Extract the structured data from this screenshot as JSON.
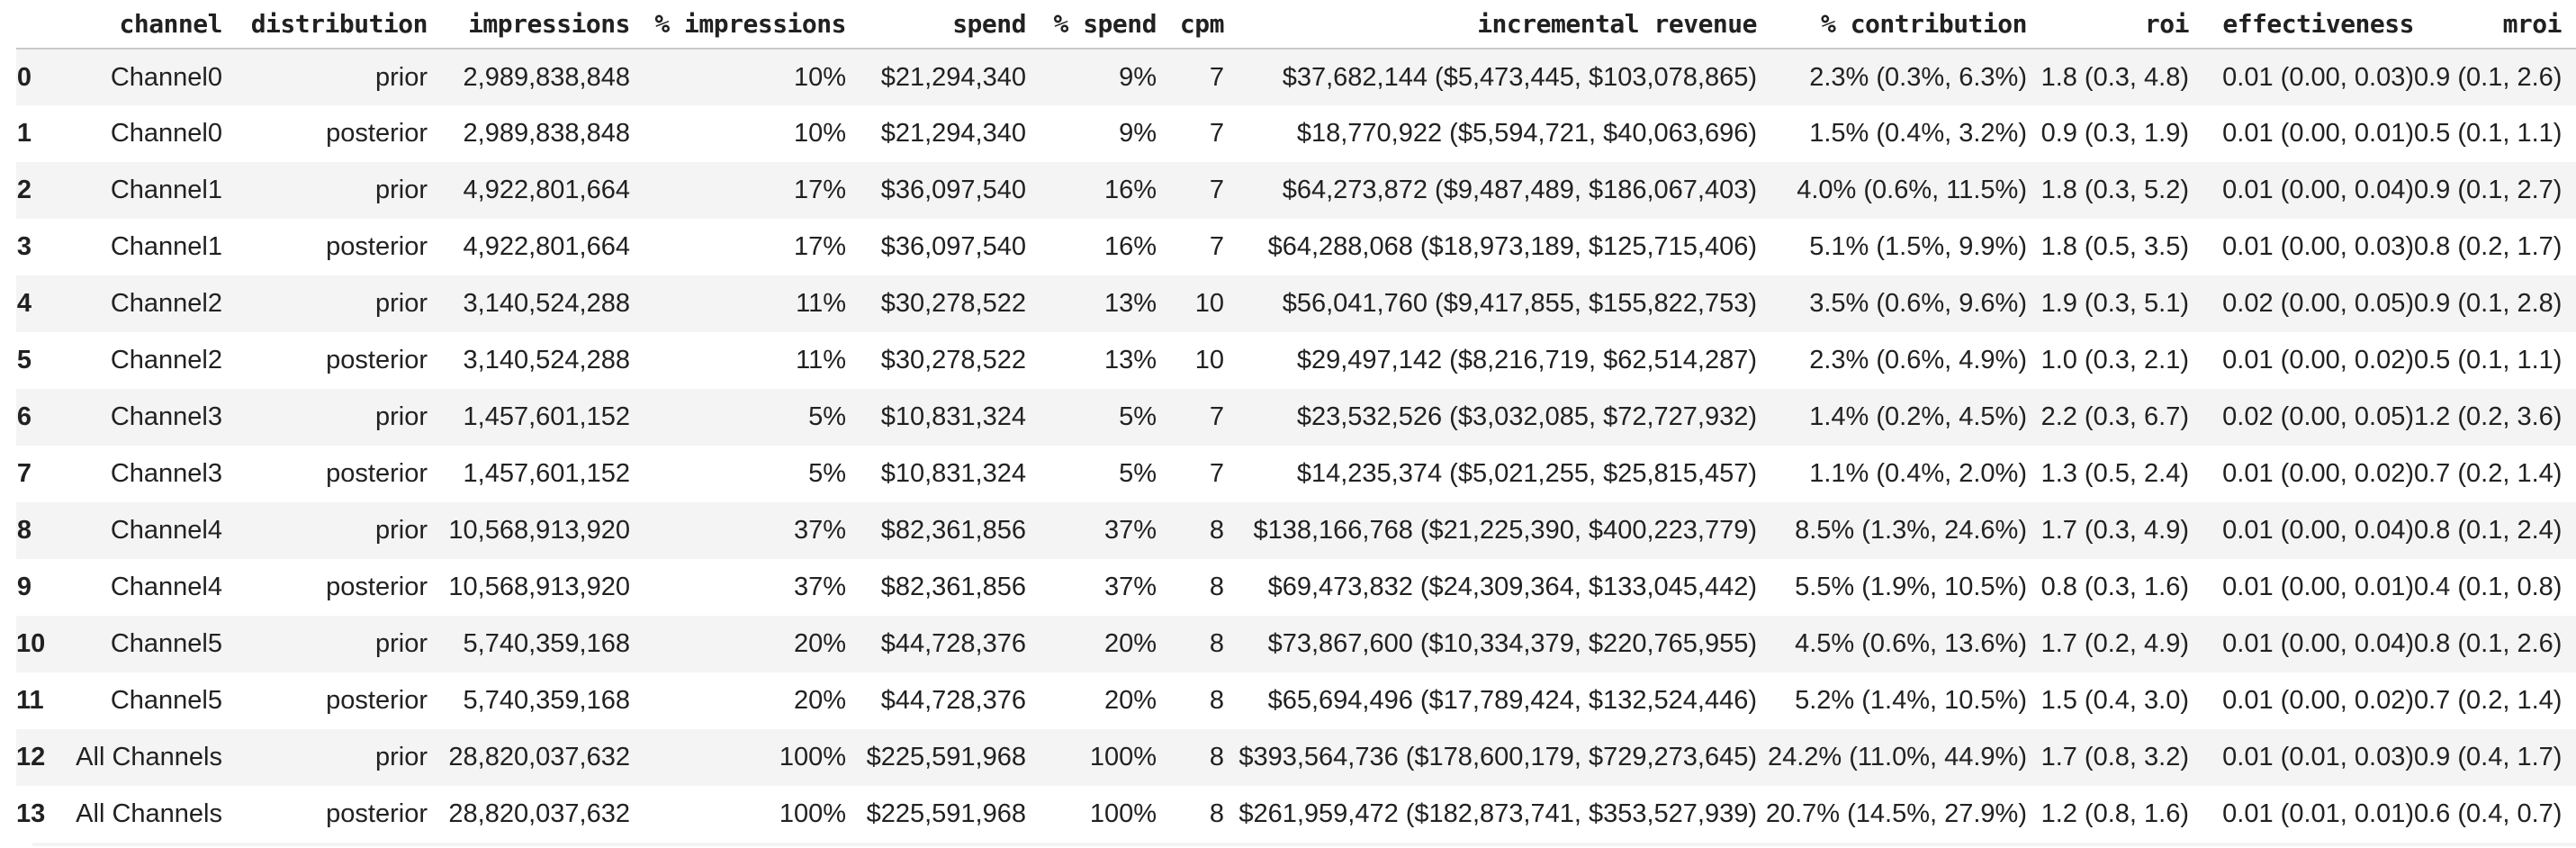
{
  "colors": {
    "text": "#212121",
    "stripe": "#f4f4f4",
    "divider": "#c9c9c9",
    "background": "#ffffff"
  },
  "table": {
    "columns": [
      {
        "key": "row-index",
        "label": ""
      },
      {
        "key": "channel",
        "label": "channel"
      },
      {
        "key": "distribution",
        "label": "distribution"
      },
      {
        "key": "impressions",
        "label": "impressions"
      },
      {
        "key": "pct-impressions",
        "label": "% impressions"
      },
      {
        "key": "spend",
        "label": "spend"
      },
      {
        "key": "pct-spend",
        "label": "% spend"
      },
      {
        "key": "cpm",
        "label": "cpm"
      },
      {
        "key": "incremental-revenue",
        "label": "incremental revenue"
      },
      {
        "key": "pct-contribution",
        "label": "% contribution"
      },
      {
        "key": "roi",
        "label": "roi"
      },
      {
        "key": "effectiveness",
        "label": "effectiveness"
      },
      {
        "key": "mroi",
        "label": "mroi"
      }
    ],
    "rows": [
      [
        "0",
        "Channel0",
        "prior",
        "2,989,838,848",
        "10%",
        "$21,294,340",
        "9%",
        "7",
        "$37,682,144 ($5,473,445, $103,078,865)",
        "2.3% (0.3%, 6.3%)",
        "1.8 (0.3, 4.8)",
        "0.01 (0.00, 0.03)",
        "0.9 (0.1, 2.6)"
      ],
      [
        "1",
        "Channel0",
        "posterior",
        "2,989,838,848",
        "10%",
        "$21,294,340",
        "9%",
        "7",
        "$18,770,922 ($5,594,721, $40,063,696)",
        "1.5% (0.4%, 3.2%)",
        "0.9 (0.3, 1.9)",
        "0.01 (0.00, 0.01)",
        "0.5 (0.1, 1.1)"
      ],
      [
        "2",
        "Channel1",
        "prior",
        "4,922,801,664",
        "17%",
        "$36,097,540",
        "16%",
        "7",
        "$64,273,872 ($9,487,489, $186,067,403)",
        "4.0% (0.6%, 11.5%)",
        "1.8 (0.3, 5.2)",
        "0.01 (0.00, 0.04)",
        "0.9 (0.1, 2.7)"
      ],
      [
        "3",
        "Channel1",
        "posterior",
        "4,922,801,664",
        "17%",
        "$36,097,540",
        "16%",
        "7",
        "$64,288,068 ($18,973,189, $125,715,406)",
        "5.1% (1.5%, 9.9%)",
        "1.8 (0.5, 3.5)",
        "0.01 (0.00, 0.03)",
        "0.8 (0.2, 1.7)"
      ],
      [
        "4",
        "Channel2",
        "prior",
        "3,140,524,288",
        "11%",
        "$30,278,522",
        "13%",
        "10",
        "$56,041,760 ($9,417,855, $155,822,753)",
        "3.5% (0.6%, 9.6%)",
        "1.9 (0.3, 5.1)",
        "0.02 (0.00, 0.05)",
        "0.9 (0.1, 2.8)"
      ],
      [
        "5",
        "Channel2",
        "posterior",
        "3,140,524,288",
        "11%",
        "$30,278,522",
        "13%",
        "10",
        "$29,497,142 ($8,216,719, $62,514,287)",
        "2.3% (0.6%, 4.9%)",
        "1.0 (0.3, 2.1)",
        "0.01 (0.00, 0.02)",
        "0.5 (0.1, 1.1)"
      ],
      [
        "6",
        "Channel3",
        "prior",
        "1,457,601,152",
        "5%",
        "$10,831,324",
        "5%",
        "7",
        "$23,532,526 ($3,032,085, $72,727,932)",
        "1.4% (0.2%, 4.5%)",
        "2.2 (0.3, 6.7)",
        "0.02 (0.00, 0.05)",
        "1.2 (0.2, 3.6)"
      ],
      [
        "7",
        "Channel3",
        "posterior",
        "1,457,601,152",
        "5%",
        "$10,831,324",
        "5%",
        "7",
        "$14,235,374 ($5,021,255, $25,815,457)",
        "1.1% (0.4%, 2.0%)",
        "1.3 (0.5, 2.4)",
        "0.01 (0.00, 0.02)",
        "0.7 (0.2, 1.4)"
      ],
      [
        "8",
        "Channel4",
        "prior",
        "10,568,913,920",
        "37%",
        "$82,361,856",
        "37%",
        "8",
        "$138,166,768 ($21,225,390, $400,223,779)",
        "8.5% (1.3%, 24.6%)",
        "1.7 (0.3, 4.9)",
        "0.01 (0.00, 0.04)",
        "0.8 (0.1, 2.4)"
      ],
      [
        "9",
        "Channel4",
        "posterior",
        "10,568,913,920",
        "37%",
        "$82,361,856",
        "37%",
        "8",
        "$69,473,832 ($24,309,364, $133,045,442)",
        "5.5% (1.9%, 10.5%)",
        "0.8 (0.3, 1.6)",
        "0.01 (0.00, 0.01)",
        "0.4 (0.1, 0.8)"
      ],
      [
        "10",
        "Channel5",
        "prior",
        "5,740,359,168",
        "20%",
        "$44,728,376",
        "20%",
        "8",
        "$73,867,600 ($10,334,379, $220,765,955)",
        "4.5% (0.6%, 13.6%)",
        "1.7 (0.2, 4.9)",
        "0.01 (0.00, 0.04)",
        "0.8 (0.1, 2.6)"
      ],
      [
        "11",
        "Channel5",
        "posterior",
        "5,740,359,168",
        "20%",
        "$44,728,376",
        "20%",
        "8",
        "$65,694,496 ($17,789,424, $132,524,446)",
        "5.2% (1.4%, 10.5%)",
        "1.5 (0.4, 3.0)",
        "0.01 (0.00, 0.02)",
        "0.7 (0.2, 1.4)"
      ],
      [
        "12",
        "All Channels",
        "prior",
        "28,820,037,632",
        "100%",
        "$225,591,968",
        "100%",
        "8",
        "$393,564,736 ($178,600,179, $729,273,645)",
        "24.2% (11.0%, 44.9%)",
        "1.7 (0.8, 3.2)",
        "0.01 (0.01, 0.03)",
        "0.9 (0.4, 1.7)"
      ],
      [
        "13",
        "All Channels",
        "posterior",
        "28,820,037,632",
        "100%",
        "$225,591,968",
        "100%",
        "8",
        "$261,959,472 ($182,873,741, $353,527,939)",
        "20.7% (14.5%, 27.9%)",
        "1.2 (0.8, 1.6)",
        "0.01 (0.01, 0.01)",
        "0.6 (0.4, 0.7)"
      ]
    ]
  }
}
